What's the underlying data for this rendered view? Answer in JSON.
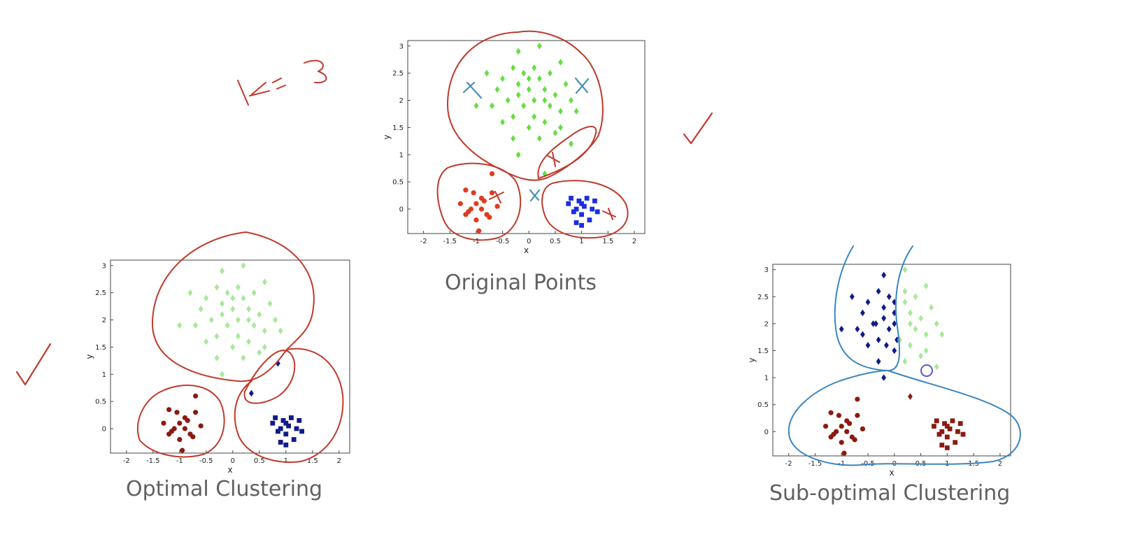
{
  "slide": {
    "annotation_k": "K=3",
    "captions": {
      "original": "Original Points",
      "optimal": "Optimal Clustering",
      "suboptimal": "Sub-optimal Clustering"
    },
    "colors": {
      "green": "#66dd44",
      "light_green": "#a8e89a",
      "red": "#e03a20",
      "dark_red": "#8b1a10",
      "blue": "#1a2ee0",
      "navy": "#101a88",
      "ink_red": "#c0392b",
      "ink_blue": "#3a86c0",
      "ink_teal": "#4a90b0",
      "caption_gray": "#606060"
    }
  },
  "chart_data": [
    {
      "id": "original",
      "type": "scatter",
      "title": "",
      "xlabel": "x",
      "ylabel": "y",
      "xlim": [
        -2.3,
        2.2
      ],
      "ylim": [
        -0.45,
        3.1
      ],
      "xticks": [
        "-2",
        "-1.5",
        "-1",
        "-0.5",
        "0",
        "0.5",
        "1",
        "1.5",
        "2"
      ],
      "yticks": [
        "0",
        "0.5",
        "1",
        "1.5",
        "2",
        "2.5",
        "3"
      ],
      "series": [
        {
          "marker": "diamond",
          "color": "#66dd44",
          "points": [
            [
              -0.3,
              2.6
            ],
            [
              -0.1,
              2.5
            ],
            [
              0.1,
              2.6
            ],
            [
              -0.2,
              2.3
            ],
            [
              0.0,
              2.2
            ],
            [
              0.2,
              2.4
            ],
            [
              0.3,
              2.0
            ],
            [
              -0.4,
              2.0
            ],
            [
              -0.1,
              1.9
            ],
            [
              0.4,
              2.5
            ],
            [
              0.5,
              2.1
            ],
            [
              -0.3,
              1.7
            ],
            [
              0.1,
              1.7
            ],
            [
              0.6,
              1.8
            ],
            [
              -0.6,
              2.2
            ],
            [
              -0.5,
              1.6
            ],
            [
              0.0,
              1.5
            ],
            [
              0.3,
              1.6
            ],
            [
              0.8,
              2.0
            ],
            [
              -0.2,
              2.9
            ],
            [
              0.2,
              3.0
            ],
            [
              0.6,
              2.7
            ],
            [
              -0.8,
              2.5
            ],
            [
              -1.0,
              1.9
            ],
            [
              0.9,
              1.8
            ],
            [
              0.8,
              1.2
            ],
            [
              -0.2,
              1.0
            ],
            [
              0.3,
              0.65
            ],
            [
              0.2,
              1.3
            ],
            [
              -0.3,
              1.3
            ],
            [
              0.5,
              1.4
            ],
            [
              0.7,
              2.3
            ],
            [
              -0.7,
              1.9
            ],
            [
              0.1,
              2.0
            ],
            [
              -0.2,
              2.1
            ],
            [
              0.4,
              1.9
            ],
            [
              0.0,
              2.4
            ],
            [
              -0.5,
              2.4
            ],
            [
              0.3,
              2.2
            ],
            [
              0.6,
              1.5
            ]
          ]
        },
        {
          "marker": "circle",
          "color": "#e03a20",
          "points": [
            [
              -1.1,
              0.0
            ],
            [
              -1.0,
              0.1
            ],
            [
              -0.9,
              0.0
            ],
            [
              -1.2,
              -0.1
            ],
            [
              -0.9,
              0.2
            ],
            [
              -0.8,
              -0.1
            ],
            [
              -1.0,
              -0.2
            ],
            [
              -1.3,
              0.1
            ],
            [
              -0.7,
              0.3
            ],
            [
              -1.05,
              0.3
            ],
            [
              -0.95,
              -0.4
            ],
            [
              -1.2,
              0.35
            ],
            [
              -0.6,
              0.05
            ],
            [
              -0.75,
              -0.15
            ],
            [
              -1.15,
              -0.05
            ],
            [
              -0.85,
              0.15
            ],
            [
              -0.7,
              0.65
            ]
          ]
        },
        {
          "marker": "square",
          "color": "#1a2ee0",
          "points": [
            [
              0.8,
              0.2
            ],
            [
              1.0,
              0.1
            ],
            [
              1.1,
              0.2
            ],
            [
              0.9,
              0.0
            ],
            [
              1.2,
              0.0
            ],
            [
              1.0,
              -0.1
            ],
            [
              0.85,
              -0.05
            ],
            [
              1.15,
              -0.2
            ],
            [
              0.95,
              0.15
            ],
            [
              1.05,
              0.05
            ],
            [
              0.75,
              0.1
            ],
            [
              1.25,
              0.15
            ],
            [
              1.0,
              -0.3
            ],
            [
              1.3,
              -0.05
            ],
            [
              0.9,
              -0.25
            ]
          ]
        }
      ]
    },
    {
      "id": "optimal",
      "type": "scatter",
      "title": "",
      "xlabel": "x",
      "ylabel": "y",
      "xlim": [
        -2.3,
        2.2
      ],
      "ylim": [
        -0.45,
        3.1
      ],
      "xticks": [
        "-2",
        "-1.5",
        "-1",
        "-0.5",
        "0",
        "0.5",
        "1",
        "1.5",
        "2"
      ],
      "yticks": [
        "0",
        "0.5",
        "1",
        "1.5",
        "2",
        "2.5",
        "3"
      ],
      "series": [
        {
          "marker": "diamond",
          "color": "#a8e89a",
          "points": [
            [
              -0.3,
              2.6
            ],
            [
              -0.1,
              2.5
            ],
            [
              0.1,
              2.6
            ],
            [
              -0.2,
              2.3
            ],
            [
              0.0,
              2.2
            ],
            [
              0.2,
              2.4
            ],
            [
              0.3,
              2.0
            ],
            [
              -0.4,
              2.0
            ],
            [
              -0.1,
              1.9
            ],
            [
              0.4,
              2.5
            ],
            [
              0.5,
              2.1
            ],
            [
              -0.3,
              1.7
            ],
            [
              0.1,
              1.7
            ],
            [
              0.6,
              1.8
            ],
            [
              -0.6,
              2.2
            ],
            [
              -0.5,
              1.6
            ],
            [
              0.0,
              1.5
            ],
            [
              0.3,
              1.6
            ],
            [
              0.8,
              2.0
            ],
            [
              -0.2,
              2.9
            ],
            [
              0.2,
              3.0
            ],
            [
              0.6,
              2.7
            ],
            [
              -0.8,
              2.5
            ],
            [
              -1.0,
              1.9
            ],
            [
              0.9,
              1.8
            ],
            [
              -0.2,
              1.0
            ],
            [
              0.2,
              1.3
            ],
            [
              -0.3,
              1.3
            ],
            [
              0.5,
              1.4
            ],
            [
              0.7,
              2.3
            ],
            [
              -0.7,
              1.9
            ],
            [
              0.1,
              2.0
            ],
            [
              -0.2,
              2.1
            ],
            [
              0.4,
              1.9
            ],
            [
              0.0,
              2.4
            ],
            [
              -0.5,
              2.4
            ],
            [
              0.3,
              2.2
            ],
            [
              0.6,
              1.5
            ]
          ]
        },
        {
          "marker": "circle",
          "color": "#8b1a10",
          "points": [
            [
              -1.1,
              0.0
            ],
            [
              -1.0,
              0.1
            ],
            [
              -0.9,
              0.0
            ],
            [
              -1.2,
              -0.1
            ],
            [
              -0.9,
              0.2
            ],
            [
              -0.8,
              -0.1
            ],
            [
              -1.0,
              -0.2
            ],
            [
              -1.3,
              0.1
            ],
            [
              -0.7,
              0.3
            ],
            [
              -1.05,
              0.3
            ],
            [
              -0.95,
              -0.4
            ],
            [
              -1.2,
              0.35
            ],
            [
              -0.6,
              0.05
            ],
            [
              -0.75,
              -0.15
            ],
            [
              -1.15,
              -0.05
            ],
            [
              -0.85,
              0.15
            ],
            [
              -0.7,
              0.6
            ]
          ]
        },
        {
          "marker": "square",
          "color": "#101a88",
          "points": [
            [
              0.8,
              0.2
            ],
            [
              1.0,
              0.1
            ],
            [
              1.1,
              0.2
            ],
            [
              0.9,
              0.0
            ],
            [
              1.2,
              0.0
            ],
            [
              1.0,
              -0.1
            ],
            [
              0.85,
              -0.05
            ],
            [
              1.15,
              -0.2
            ],
            [
              0.95,
              0.15
            ],
            [
              1.05,
              0.05
            ],
            [
              0.75,
              0.1
            ],
            [
              1.25,
              0.15
            ],
            [
              1.0,
              -0.3
            ],
            [
              1.3,
              -0.05
            ],
            [
              0.9,
              -0.25
            ]
          ]
        },
        {
          "marker": "diamond",
          "color": "#101a88",
          "points": [
            [
              0.85,
              1.2
            ],
            [
              0.35,
              0.65
            ]
          ]
        }
      ]
    },
    {
      "id": "suboptimal",
      "type": "scatter",
      "title": "",
      "xlabel": "x",
      "ylabel": "y",
      "xlim": [
        -2.3,
        2.2
      ],
      "ylim": [
        -0.45,
        3.1
      ],
      "xticks": [
        "-2",
        "-1.5",
        "-1",
        "-0.5",
        "0",
        "0.5",
        "1",
        "1.5",
        "2"
      ],
      "yticks": [
        "0",
        "0.5",
        "1",
        "1.5",
        "2",
        "2.5",
        "3"
      ],
      "series": [
        {
          "marker": "diamond",
          "color": "#101a88",
          "points": [
            [
              -0.3,
              2.6
            ],
            [
              -0.1,
              2.5
            ],
            [
              -0.2,
              2.3
            ],
            [
              0.0,
              2.2
            ],
            [
              -0.4,
              2.0
            ],
            [
              -0.1,
              1.9
            ],
            [
              -0.3,
              1.7
            ],
            [
              0.05,
              1.7
            ],
            [
              -0.6,
              2.2
            ],
            [
              -0.5,
              1.6
            ],
            [
              0.0,
              1.5
            ],
            [
              -0.2,
              2.9
            ],
            [
              -0.8,
              2.5
            ],
            [
              -1.0,
              1.9
            ],
            [
              -0.2,
              1.0
            ],
            [
              -0.3,
              1.3
            ],
            [
              -0.7,
              1.9
            ],
            [
              0.0,
              2.0
            ],
            [
              -0.2,
              2.1
            ],
            [
              0.0,
              2.4
            ],
            [
              -0.5,
              2.4
            ],
            [
              -0.35,
              2.0
            ],
            [
              -0.15,
              1.6
            ],
            [
              -0.6,
              1.8
            ]
          ]
        },
        {
          "marker": "diamond",
          "color": "#a8e89a",
          "points": [
            [
              0.2,
              2.6
            ],
            [
              0.2,
              2.4
            ],
            [
              0.3,
              2.0
            ],
            [
              0.4,
              2.5
            ],
            [
              0.5,
              2.1
            ],
            [
              0.1,
              1.7
            ],
            [
              0.6,
              1.8
            ],
            [
              0.3,
              1.6
            ],
            [
              0.8,
              2.0
            ],
            [
              0.2,
              3.0
            ],
            [
              0.6,
              2.7
            ],
            [
              0.9,
              1.8
            ],
            [
              0.2,
              1.3
            ],
            [
              0.5,
              1.4
            ],
            [
              0.7,
              2.3
            ],
            [
              0.4,
              1.9
            ],
            [
              0.3,
              2.2
            ],
            [
              0.6,
              1.5
            ],
            [
              0.8,
              1.2
            ]
          ]
        },
        {
          "marker": "circle",
          "color": "#8b1a10",
          "points": [
            [
              -1.1,
              0.0
            ],
            [
              -1.0,
              0.1
            ],
            [
              -0.9,
              0.0
            ],
            [
              -1.2,
              -0.1
            ],
            [
              -0.9,
              0.2
            ],
            [
              -0.8,
              -0.1
            ],
            [
              -1.0,
              -0.2
            ],
            [
              -1.3,
              0.1
            ],
            [
              -0.7,
              0.3
            ],
            [
              -1.05,
              0.3
            ],
            [
              -0.95,
              -0.4
            ],
            [
              -1.2,
              0.35
            ],
            [
              -0.6,
              0.05
            ],
            [
              -0.75,
              -0.15
            ],
            [
              -1.15,
              -0.05
            ],
            [
              -0.85,
              0.15
            ],
            [
              -0.7,
              0.6
            ]
          ]
        },
        {
          "marker": "square",
          "color": "#8b1a10",
          "points": [
            [
              0.8,
              0.2
            ],
            [
              1.0,
              0.1
            ],
            [
              1.1,
              0.2
            ],
            [
              0.9,
              0.0
            ],
            [
              1.2,
              0.0
            ],
            [
              1.0,
              -0.1
            ],
            [
              0.85,
              -0.05
            ],
            [
              1.15,
              -0.2
            ],
            [
              0.95,
              0.15
            ],
            [
              1.05,
              0.05
            ],
            [
              0.75,
              0.1
            ],
            [
              1.25,
              0.15
            ],
            [
              1.0,
              -0.3
            ],
            [
              1.3,
              -0.05
            ],
            [
              0.9,
              -0.25
            ]
          ]
        },
        {
          "marker": "diamond",
          "color": "#8b1a10",
          "points": [
            [
              0.3,
              0.65
            ]
          ]
        }
      ]
    }
  ]
}
